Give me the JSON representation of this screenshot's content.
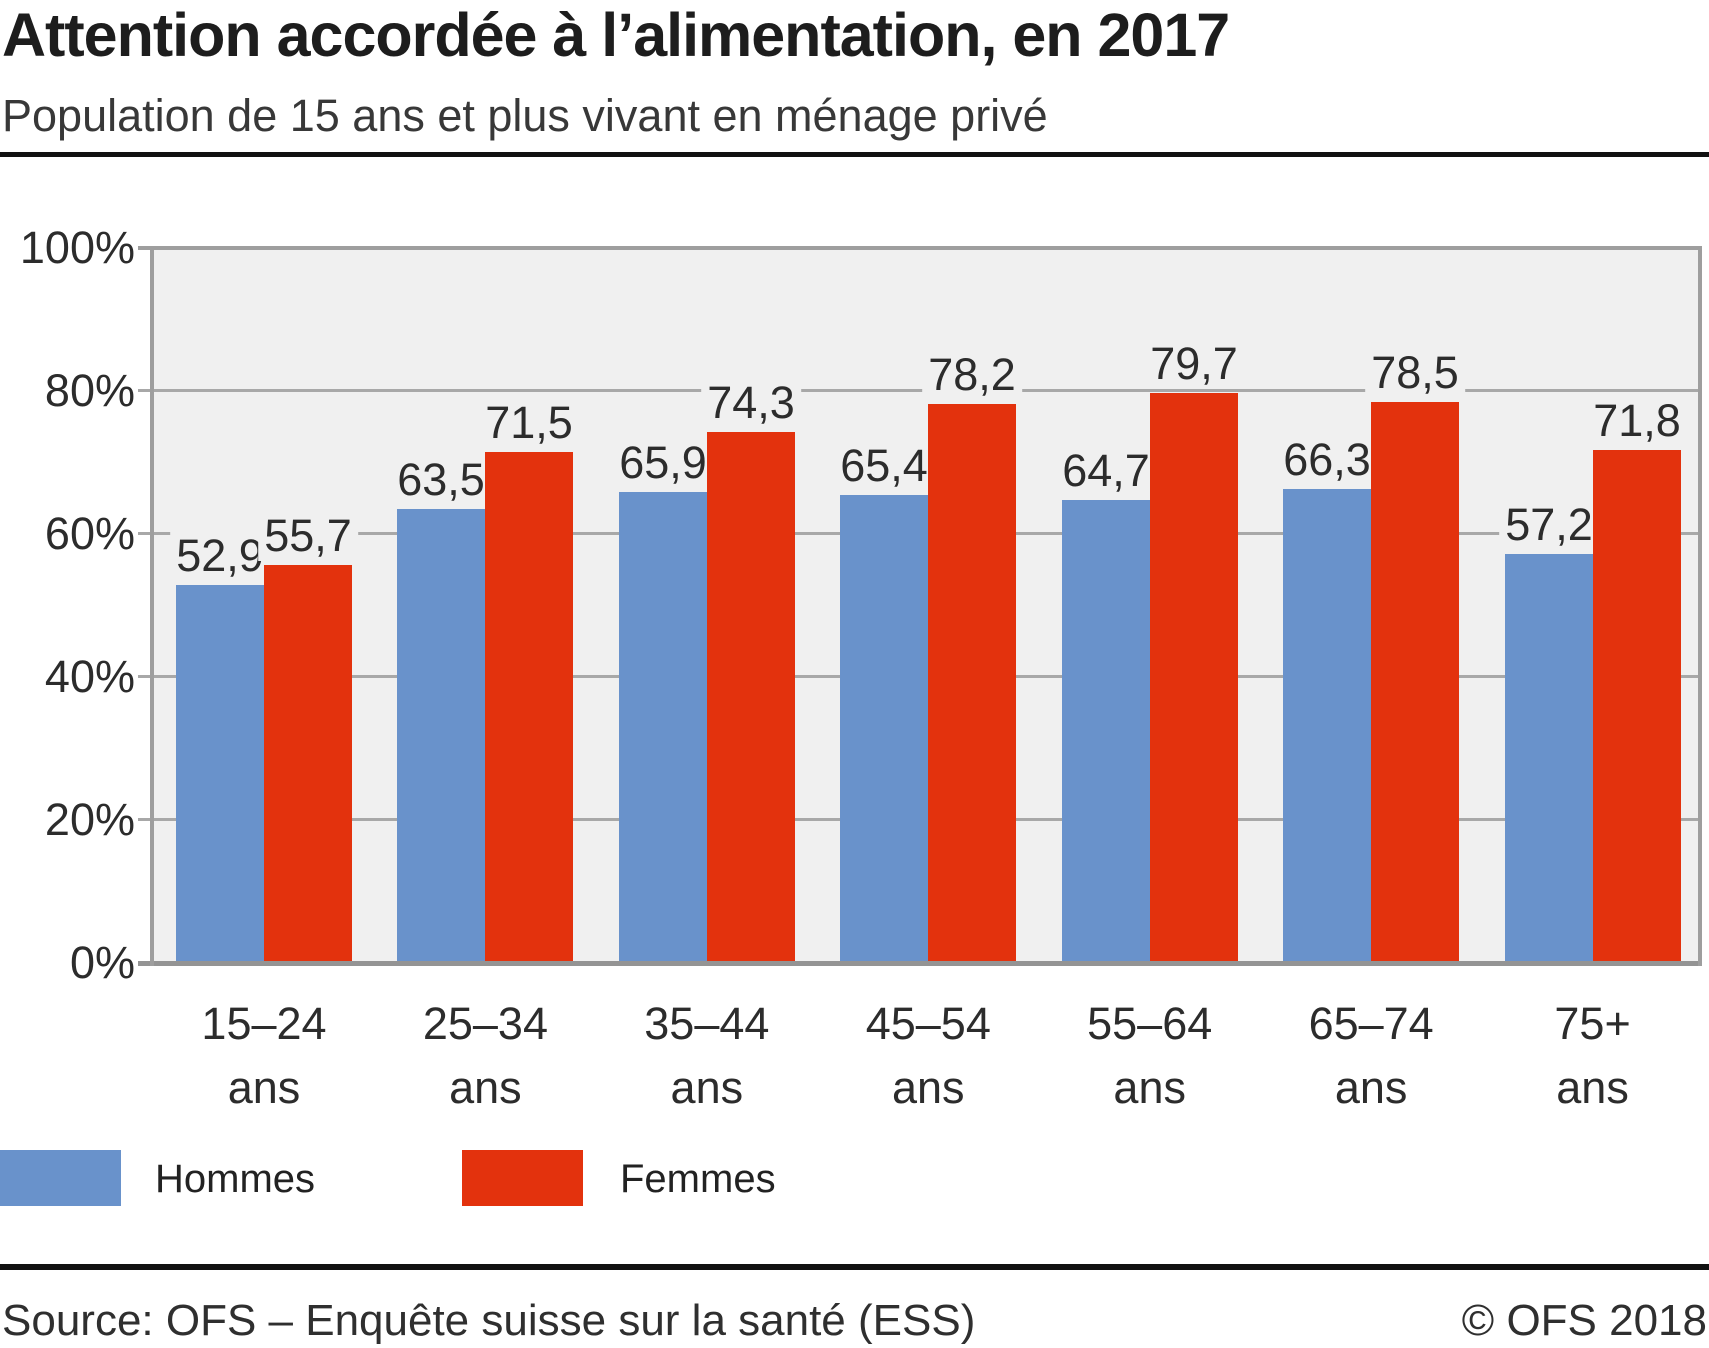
{
  "chart_data": {
    "type": "bar",
    "title": "Attention accordée à l’alimentation, en 2017",
    "subtitle": "Population de 15 ans et plus vivant en ménage privé",
    "categories": [
      "15–24",
      "25–34",
      "35–44",
      "45–54",
      "55–64",
      "65–74",
      "75+"
    ],
    "category_unit": "ans",
    "series": [
      {
        "name": "Hommes",
        "color": "#6992CB",
        "values": [
          52.9,
          63.5,
          65.9,
          65.4,
          64.7,
          66.3,
          57.2
        ]
      },
      {
        "name": "Femmes",
        "color": "#E3320D",
        "values": [
          55.7,
          71.5,
          74.3,
          78.2,
          79.7,
          78.5,
          71.8
        ]
      }
    ],
    "value_label_decimal_separator": ",",
    "ylim": [
      0,
      100
    ],
    "y_ticks": [
      "0%",
      "20%",
      "40%",
      "60%",
      "80%",
      "100%"
    ],
    "grid": true,
    "legend_position": "bottom-left",
    "plot_background": "#f0f0f0"
  },
  "footer": {
    "source": "Source: OFS – Enquête suisse sur la santé (ESS)",
    "copyright": "© OFS 2018"
  }
}
